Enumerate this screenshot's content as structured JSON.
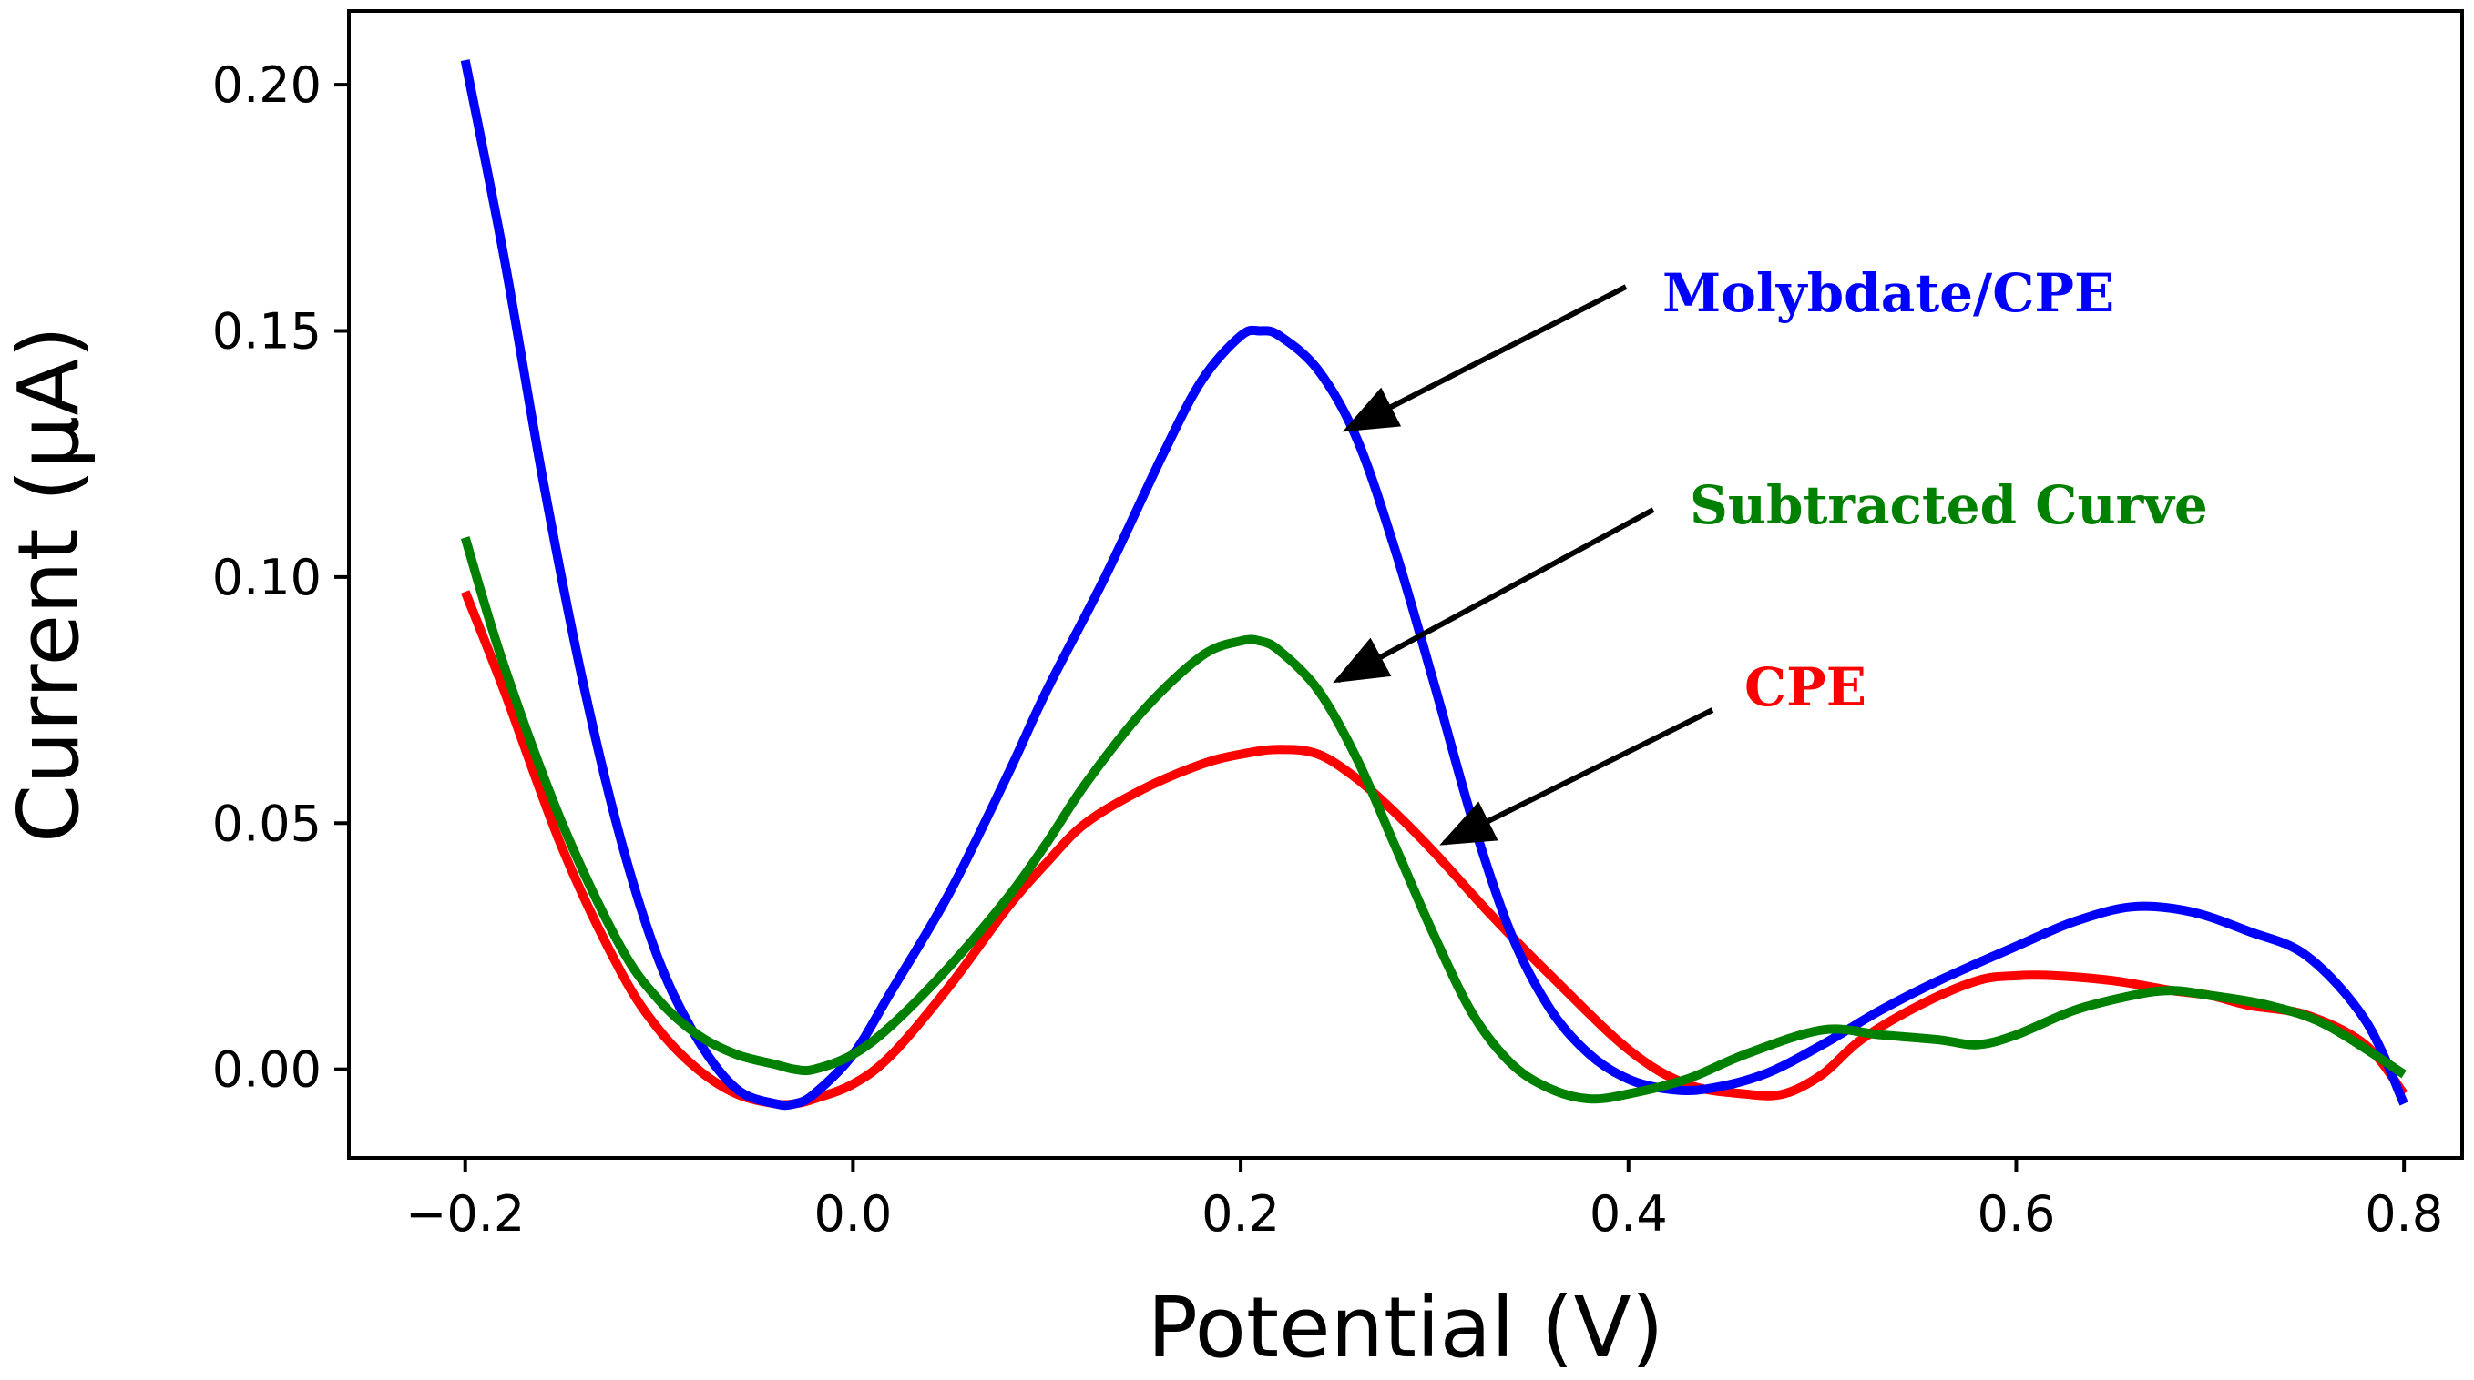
{
  "chart_data": {
    "type": "line",
    "title": "",
    "xlabel": "Potential (V)",
    "ylabel": "Current (μA)",
    "xlim": [
      -0.26,
      0.83
    ],
    "ylim": [
      -0.018,
      0.215
    ],
    "xticks": [
      -0.2,
      0.0,
      0.2,
      0.4,
      0.6,
      0.8
    ],
    "xtick_labels": [
      "−0.2",
      "0.0",
      "0.2",
      "0.4",
      "0.6",
      "0.8"
    ],
    "yticks": [
      0.0,
      0.05,
      0.1,
      0.15,
      0.2
    ],
    "ytick_labels": [
      "0.00",
      "0.05",
      "0.10",
      "0.15",
      "0.20"
    ],
    "grid": false,
    "series": [
      {
        "name": "CPE",
        "color": "#ff0000",
        "x": [
          -0.2,
          -0.18,
          -0.15,
          -0.12,
          -0.1,
          -0.08,
          -0.06,
          -0.04,
          -0.03,
          -0.02,
          0.0,
          0.02,
          0.05,
          0.08,
          0.1,
          0.12,
          0.15,
          0.18,
          0.2,
          0.22,
          0.24,
          0.26,
          0.28,
          0.3,
          0.33,
          0.36,
          0.4,
          0.43,
          0.46,
          0.48,
          0.5,
          0.52,
          0.55,
          0.58,
          0.6,
          0.62,
          0.65,
          0.68,
          0.7,
          0.72,
          0.75,
          0.78,
          0.8
        ],
        "y": [
          0.097,
          0.077,
          0.045,
          0.02,
          0.008,
          0.0,
          -0.005,
          -0.007,
          -0.007,
          -0.006,
          -0.003,
          0.003,
          0.017,
          0.033,
          0.042,
          0.05,
          0.057,
          0.062,
          0.064,
          0.065,
          0.064,
          0.059,
          0.052,
          0.044,
          0.031,
          0.019,
          0.004,
          -0.003,
          -0.005,
          -0.005,
          -0.001,
          0.006,
          0.013,
          0.018,
          0.019,
          0.019,
          0.018,
          0.016,
          0.015,
          0.013,
          0.011,
          0.005,
          -0.005
        ]
      },
      {
        "name": "Molybdate/CPE",
        "color": "#0000ff",
        "x": [
          -0.2,
          -0.18,
          -0.16,
          -0.14,
          -0.12,
          -0.1,
          -0.08,
          -0.06,
          -0.04,
          -0.03,
          -0.02,
          0.0,
          0.02,
          0.05,
          0.08,
          0.1,
          0.13,
          0.16,
          0.18,
          0.2,
          0.21,
          0.22,
          0.24,
          0.26,
          0.28,
          0.3,
          0.32,
          0.34,
          0.36,
          0.38,
          0.4,
          0.42,
          0.44,
          0.47,
          0.5,
          0.53,
          0.56,
          0.6,
          0.63,
          0.66,
          0.69,
          0.72,
          0.75,
          0.78,
          0.8
        ],
        "y": [
          0.205,
          0.165,
          0.12,
          0.08,
          0.047,
          0.022,
          0.006,
          -0.004,
          -0.007,
          -0.007,
          -0.005,
          0.003,
          0.016,
          0.036,
          0.06,
          0.077,
          0.1,
          0.125,
          0.14,
          0.149,
          0.15,
          0.149,
          0.142,
          0.128,
          0.105,
          0.078,
          0.05,
          0.027,
          0.012,
          0.003,
          -0.002,
          -0.004,
          -0.004,
          -0.001,
          0.005,
          0.012,
          0.018,
          0.025,
          0.03,
          0.033,
          0.032,
          0.028,
          0.023,
          0.01,
          -0.007
        ]
      },
      {
        "name": "Subtracted Curve",
        "color": "#008000",
        "x": [
          -0.2,
          -0.18,
          -0.15,
          -0.12,
          -0.1,
          -0.08,
          -0.06,
          -0.04,
          -0.03,
          -0.02,
          0.0,
          0.02,
          0.05,
          0.08,
          0.1,
          0.12,
          0.15,
          0.18,
          0.2,
          0.21,
          0.22,
          0.24,
          0.26,
          0.28,
          0.3,
          0.32,
          0.34,
          0.36,
          0.38,
          0.4,
          0.43,
          0.46,
          0.5,
          0.53,
          0.56,
          0.58,
          0.6,
          0.63,
          0.66,
          0.68,
          0.7,
          0.73,
          0.76,
          0.8
        ],
        "y": [
          0.108,
          0.082,
          0.05,
          0.025,
          0.014,
          0.007,
          0.003,
          0.001,
          0.0,
          0.0,
          0.003,
          0.009,
          0.021,
          0.035,
          0.046,
          0.058,
          0.073,
          0.084,
          0.087,
          0.087,
          0.085,
          0.077,
          0.063,
          0.045,
          0.027,
          0.011,
          0.001,
          -0.004,
          -0.006,
          -0.005,
          -0.002,
          0.003,
          0.008,
          0.007,
          0.006,
          0.005,
          0.007,
          0.012,
          0.015,
          0.016,
          0.015,
          0.013,
          0.009,
          -0.001
        ]
      }
    ],
    "annotations": [
      {
        "text": "Molybdate/CPE",
        "color": "#0000ff",
        "points_to": [
          0.255,
          0.13
        ]
      },
      {
        "text": "Subtracted Curve",
        "color": "#008000",
        "points_to": [
          0.25,
          0.079
        ]
      },
      {
        "text": "CPE",
        "color": "#ff0000",
        "points_to": [
          0.305,
          0.046
        ]
      }
    ]
  }
}
